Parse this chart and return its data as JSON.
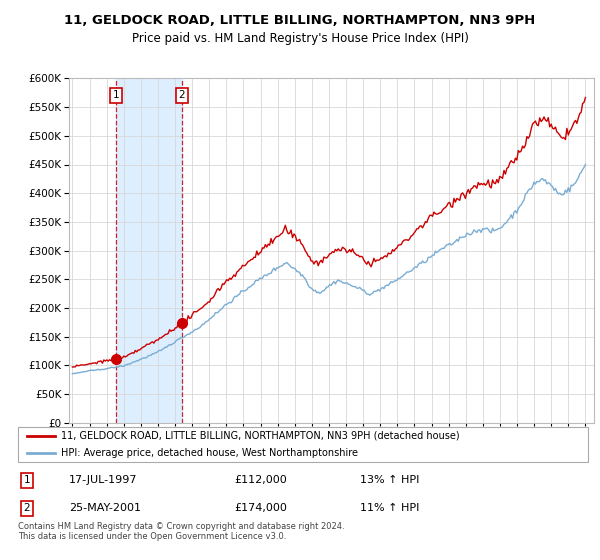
{
  "title": "11, GELDOCK ROAD, LITTLE BILLING, NORTHAMPTON, NN3 9PH",
  "subtitle": "Price paid vs. HM Land Registry's House Price Index (HPI)",
  "legend_line1": "11, GELDOCK ROAD, LITTLE BILLING, NORTHAMPTON, NN3 9PH (detached house)",
  "legend_line2": "HPI: Average price, detached house, West Northamptonshire",
  "annotation1_date": "17-JUL-1997",
  "annotation1_price": "£112,000",
  "annotation1_hpi": "13% ↑ HPI",
  "annotation2_date": "25-MAY-2001",
  "annotation2_price": "£174,000",
  "annotation2_hpi": "11% ↑ HPI",
  "footnote": "Contains HM Land Registry data © Crown copyright and database right 2024.\nThis data is licensed under the Open Government Licence v3.0.",
  "sale1_year": 1997.54,
  "sale1_value": 112000,
  "sale2_year": 2001.39,
  "sale2_value": 174000,
  "price_color": "#cc0000",
  "hpi_color": "#7aadd4",
  "shade_color": "#ddeeff",
  "ylim": [
    0,
    600000
  ],
  "xlim_start": 1994.8,
  "xlim_end": 2025.5,
  "background_color": "#ffffff",
  "grid_color": "#d8d8d8"
}
